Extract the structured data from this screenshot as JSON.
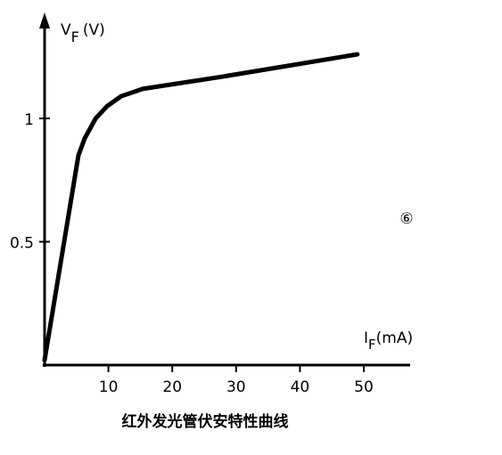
{
  "chart_data": {
    "type": "line",
    "title": "红外发光管伏安特性曲线",
    "y_label": {
      "symbol": "V",
      "subscript": "F",
      "unit": "(V)"
    },
    "x_label": {
      "symbol": "I",
      "subscript": "F",
      "unit": "(mA)"
    },
    "annotation": "⑥",
    "x": [
      0,
      5.3,
      6.3,
      8,
      9.8,
      12,
      15.4,
      28,
      49
    ],
    "series": [
      {
        "color": "#000000",
        "values": [
          0.02,
          0.85,
          0.92,
          1.0,
          1.05,
          1.09,
          1.12,
          1.17,
          1.26
        ]
      }
    ],
    "xlim": [
      0,
      57
    ],
    "ylim": [
      0,
      1.4
    ],
    "xticks": [
      10,
      20,
      30,
      40,
      50
    ],
    "yticks": [
      0.5,
      1
    ]
  }
}
